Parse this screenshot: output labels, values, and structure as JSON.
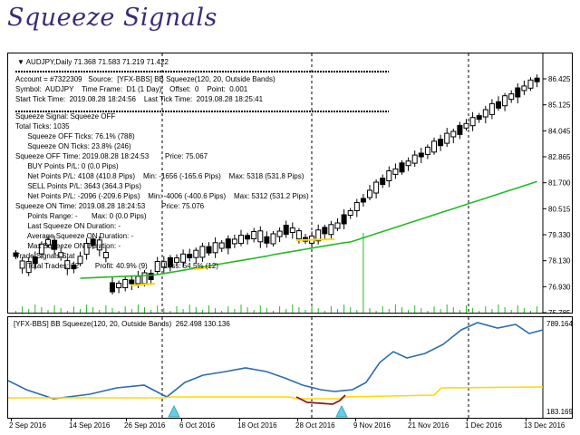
{
  "title": "Squeeze Signals",
  "chart_header": {
    "symbol_line": "AUDJPY,Daily  71.368 71.583 71.219 71.422"
  },
  "info_lines": [
    "Account = #7322309   Source:  [YFX-BBS] BB Squeeze(120, 20, Outside Bands)",
    "Symbol:  AUDJPY    Time Frame:  D1 (1 Day)    Offset:  0    Point:  0.001",
    "Start Tick Time:  2019.08.28 18:24:56    Last Tick Time:  2019.08.28 18:25:41",
    "",
    "Squeeze Signal: Squeeze OFF",
    "",
    "Total Ticks: 1035",
    "      Squeeze OFF Ticks: 76.1% (788)",
    "      Squeeze ON Ticks: 23.8% (246)",
    "",
    "Squeeze OFF Time: 2019.08.28 18:24:53        Price: 75.067",
    "      BUY Points P/L: 0 (0.0 Pips)",
    "      Net Points P/L: 4108 (410.8 Pips)    Min: -1656 (-165.6 Pips)    Max: 5318 (531.8 Pips)",
    "",
    "      SELL Points P/L: 3643 (364.3 Pips)",
    "      Net Points P/L: -2096 (-209.6 Pips)    Min: -4006 (-400.6 Pips)    Max: 5312 (531.2 Pips)",
    "",
    "Squeeze ON Time: 2019.08.28 18:24:53        Price: 75.076",
    "      Points Range: -       Max: 0 (0.0 Pips)",
    "      Last Squeeze ON Duration: -",
    "      Average Squeeze ON Duration: -",
    "      Max Squeeze ON Duration: -",
    "",
    "Trade Signals Stat",
    "      Total Trades: 22        Profit: 40.9% (9)        Loss: 54.5% (12)"
  ],
  "price_axis": [
    "86.425",
    "85.125",
    "84.045",
    "82.865",
    "81.700",
    "80.515",
    "79.330",
    "78.130",
    "76.930",
    "75.785"
  ],
  "indicator": {
    "label": "[YFX-BBS] BB Squeeze(120, 20, Outside Bands)  262.498 130.136",
    "axis_top": "789.164",
    "axis_bottom": "183.169"
  },
  "x_axis": [
    "2 Sep 2016",
    "14 Sep 2016",
    "26 Sep 2016",
    "6 Oct 2016",
    "18 Oct 2016",
    "28 Oct 2016",
    "9 Nov 2016",
    "21 Nov 2016",
    "1 Dec 2016",
    "13 Dec 2016"
  ],
  "colors": {
    "title": "#3d2a78",
    "bull": "#ffffff",
    "bear": "#000000",
    "ma_line": "#22bb22",
    "squeeze_line": "#ffd800",
    "band_line": "#2b6cb0",
    "squeeze_on_line": "#8b1a1a",
    "arrow": "#66ccee"
  }
}
